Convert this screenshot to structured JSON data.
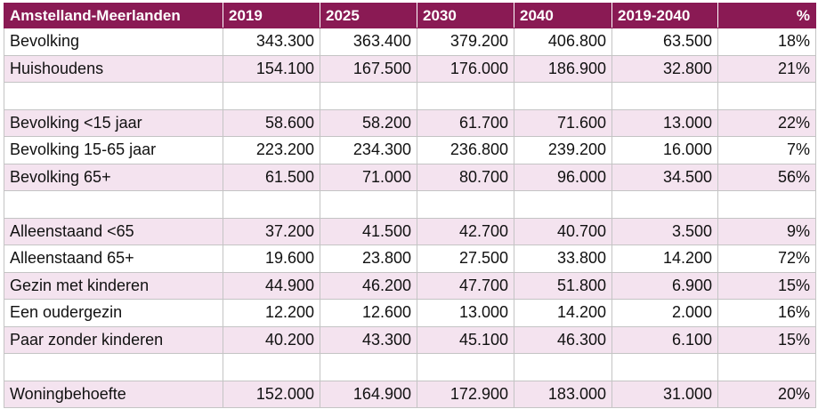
{
  "table": {
    "headers": [
      "Amstelland-Meerlanden",
      "2019",
      "2025",
      "2030",
      "2040",
      "2019-2040",
      "%"
    ],
    "rows": [
      [
        "Bevolking",
        "343.300",
        "363.400",
        "379.200",
        "406.800",
        "63.500",
        "18%"
      ],
      [
        "Huishoudens",
        "154.100",
        "167.500",
        "176.000",
        "186.900",
        "32.800",
        "21%"
      ],
      [
        "",
        "",
        "",
        "",
        "",
        "",
        ""
      ],
      [
        "Bevolking <15 jaar",
        "58.600",
        "58.200",
        "61.700",
        "71.600",
        "13.000",
        "22%"
      ],
      [
        "Bevolking 15-65 jaar",
        "223.200",
        "234.300",
        "236.800",
        "239.200",
        "16.000",
        "7%"
      ],
      [
        "Bevolking 65+",
        "61.500",
        "71.000",
        "80.700",
        "96.000",
        "34.500",
        "56%"
      ],
      [
        "",
        "",
        "",
        "",
        "",
        "",
        ""
      ],
      [
        "Alleenstaand <65",
        "37.200",
        "41.500",
        "42.700",
        "40.700",
        "3.500",
        "9%"
      ],
      [
        "Alleenstaand 65+",
        "19.600",
        "23.800",
        "27.500",
        "33.800",
        "14.200",
        "72%"
      ],
      [
        "Gezin met kinderen",
        "44.900",
        "46.200",
        "47.700",
        "51.800",
        "6.900",
        "15%"
      ],
      [
        "Een oudergezin",
        "12.200",
        "12.600",
        "13.000",
        "14.200",
        "2.000",
        "16%"
      ],
      [
        "Paar zonder kinderen",
        "40.200",
        "43.300",
        "45.100",
        "46.300",
        "6.100",
        "15%"
      ],
      [
        "",
        "",
        "",
        "",
        "",
        "",
        ""
      ],
      [
        "Woningbehoefte",
        "152.000",
        "164.900",
        "172.900",
        "183.000",
        "31.000",
        "20%"
      ]
    ]
  },
  "colors": {
    "header_bg": "#8a1a54",
    "header_text": "#ffffff",
    "row_stripe": "#f4e3ef",
    "grid_line": "#c4c4c4"
  }
}
